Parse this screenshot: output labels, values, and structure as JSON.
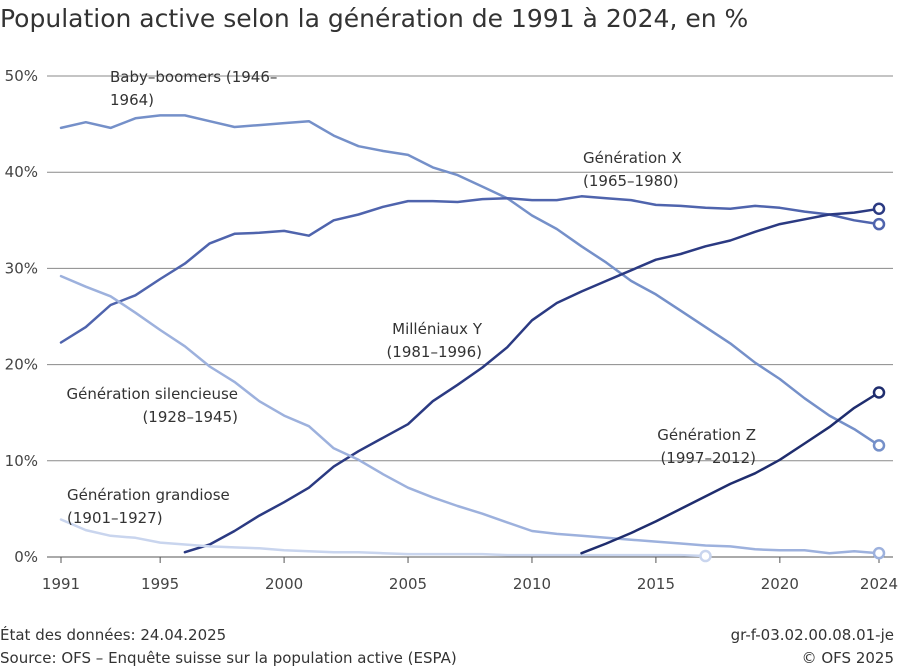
{
  "title": "Population active selon la génération de 1991 à 2024, en %",
  "footer": {
    "date": "État des données: 24.04.2025",
    "source": "Source: OFS – Enquête suisse sur la population active (ESPA)",
    "code": "gr-f-03.02.00.08.01-je",
    "copyright": "© OFS 2025"
  },
  "chart_data": {
    "type": "line",
    "title": "Population active selon la génération de 1991 à 2024, en %",
    "xlabel": "",
    "ylabel": "",
    "xlim": [
      1991,
      2024
    ],
    "ylim": [
      0,
      50
    ],
    "x_ticks": [
      "1991",
      "1995",
      "2000",
      "2005",
      "2010",
      "2015",
      "2020",
      "2024"
    ],
    "x_tick_values": [
      1991,
      1995,
      2000,
      2005,
      2010,
      2015,
      2020,
      2024
    ],
    "y_ticks": [
      "0%",
      "10%",
      "20%",
      "30%",
      "40%",
      "50%"
    ],
    "y_tick_values": [
      0,
      10,
      20,
      30,
      40,
      50
    ],
    "grid": "horizontal",
    "series": [
      {
        "name": "Baby–boomers (1946–1964)",
        "label_lines": [
          "Baby–boomers (1946–",
          "1964)"
        ],
        "color": "#7590c9",
        "x": [
          1991,
          1992,
          1993,
          1994,
          1995,
          1996,
          1997,
          1998,
          1999,
          2000,
          2001,
          2002,
          2003,
          2004,
          2005,
          2006,
          2007,
          2008,
          2009,
          2010,
          2011,
          2012,
          2013,
          2014,
          2015,
          2016,
          2017,
          2018,
          2019,
          2020,
          2021,
          2022,
          2023,
          2024
        ],
        "y": [
          44.6,
          45.2,
          44.6,
          45.6,
          45.9,
          45.9,
          45.3,
          44.7,
          44.9,
          45.1,
          45.3,
          43.8,
          42.7,
          42.2,
          41.8,
          40.5,
          39.7,
          38.5,
          37.3,
          35.5,
          34.1,
          32.3,
          30.6,
          28.7,
          27.3,
          25.6,
          23.9,
          22.2,
          20.2,
          18.5,
          16.5,
          14.7,
          13.3,
          11.6
        ],
        "end_marker": true
      },
      {
        "name": "Génération X (1965–1980)",
        "label_lines": [
          "Génération X",
          "(1965–1980)"
        ],
        "color": "#4f64ad",
        "x": [
          1991,
          1992,
          1993,
          1994,
          1995,
          1996,
          1997,
          1998,
          1999,
          2000,
          2001,
          2002,
          2003,
          2004,
          2005,
          2006,
          2007,
          2008,
          2009,
          2010,
          2011,
          2012,
          2013,
          2014,
          2015,
          2016,
          2017,
          2018,
          2019,
          2020,
          2021,
          2022,
          2023,
          2024
        ],
        "y": [
          22.3,
          23.9,
          26.2,
          27.2,
          28.9,
          30.5,
          32.6,
          33.6,
          33.7,
          33.9,
          33.4,
          35.0,
          35.6,
          36.4,
          37.0,
          37.0,
          36.9,
          37.2,
          37.3,
          37.1,
          37.1,
          37.5,
          37.3,
          37.1,
          36.6,
          36.5,
          36.3,
          36.2,
          36.5,
          36.3,
          35.9,
          35.6,
          35.0,
          34.6
        ],
        "end_marker": true
      },
      {
        "name": "Milléniaux Y (1981–1996)",
        "label_lines": [
          "Milléniaux Y",
          "(1981–1996)"
        ],
        "color": "#2b3a82",
        "x": [
          1996,
          1997,
          1998,
          1999,
          2000,
          2001,
          2002,
          2003,
          2004,
          2005,
          2006,
          2007,
          2008,
          2009,
          2010,
          2011,
          2012,
          2013,
          2014,
          2015,
          2016,
          2017,
          2018,
          2019,
          2020,
          2021,
          2022,
          2023,
          2024
        ],
        "y": [
          0.5,
          1.3,
          2.7,
          4.3,
          5.7,
          7.2,
          9.4,
          11.0,
          12.4,
          13.8,
          16.2,
          17.9,
          19.7,
          21.8,
          24.6,
          26.4,
          27.6,
          28.7,
          29.8,
          30.9,
          31.5,
          32.3,
          32.9,
          33.8,
          34.6,
          35.1,
          35.6,
          35.8,
          36.2
        ],
        "end_marker": true
      },
      {
        "name": "Génération silencieuse (1928–1945)",
        "label_lines": [
          "Génération silencieuse",
          "(1928–1945)"
        ],
        "color": "#9db1dd",
        "x": [
          1991,
          1992,
          1993,
          1994,
          1995,
          1996,
          1997,
          1998,
          1999,
          2000,
          2001,
          2002,
          2003,
          2004,
          2005,
          2006,
          2007,
          2008,
          2009,
          2010,
          2011,
          2012,
          2013,
          2014,
          2015,
          2016,
          2017,
          2018,
          2019,
          2020,
          2021,
          2022,
          2023,
          2024
        ],
        "y": [
          29.2,
          28.1,
          27.1,
          25.4,
          23.6,
          21.9,
          19.8,
          18.2,
          16.2,
          14.7,
          13.6,
          11.3,
          10.1,
          8.6,
          7.2,
          6.2,
          5.3,
          4.5,
          3.6,
          2.7,
          2.4,
          2.2,
          2.0,
          1.8,
          1.6,
          1.4,
          1.2,
          1.1,
          0.8,
          0.7,
          0.7,
          0.4,
          0.6,
          0.4
        ],
        "end_marker": true
      },
      {
        "name": "Génération grandiose (1901–1927)",
        "label_lines": [
          "Génération grandiose",
          "(1901–1927)"
        ],
        "color": "#c9d5ee",
        "x": [
          1991,
          1992,
          1993,
          1994,
          1995,
          1996,
          1997,
          1998,
          1999,
          2000,
          2001,
          2002,
          2003,
          2004,
          2005,
          2006,
          2007,
          2008,
          2009,
          2010,
          2011,
          2012,
          2013,
          2014,
          2015,
          2016,
          2017
        ],
        "y": [
          3.9,
          2.8,
          2.2,
          2.0,
          1.5,
          1.3,
          1.1,
          1.0,
          0.9,
          0.7,
          0.6,
          0.5,
          0.5,
          0.4,
          0.3,
          0.3,
          0.3,
          0.3,
          0.2,
          0.2,
          0.2,
          0.2,
          0.2,
          0.2,
          0.2,
          0.2,
          0.1
        ],
        "end_marker": true
      },
      {
        "name": "Génération Z (1997–2012)",
        "label_lines": [
          "Génération Z",
          "(1997–2012)"
        ],
        "color": "#1f2d6e",
        "x": [
          2012,
          2013,
          2014,
          2015,
          2016,
          2017,
          2018,
          2019,
          2020,
          2021,
          2022,
          2023,
          2024
        ],
        "y": [
          0.4,
          1.4,
          2.5,
          3.7,
          5.0,
          6.3,
          7.6,
          8.7,
          10.1,
          11.8,
          13.5,
          15.5,
          17.1
        ],
        "end_marker": true
      }
    ]
  }
}
